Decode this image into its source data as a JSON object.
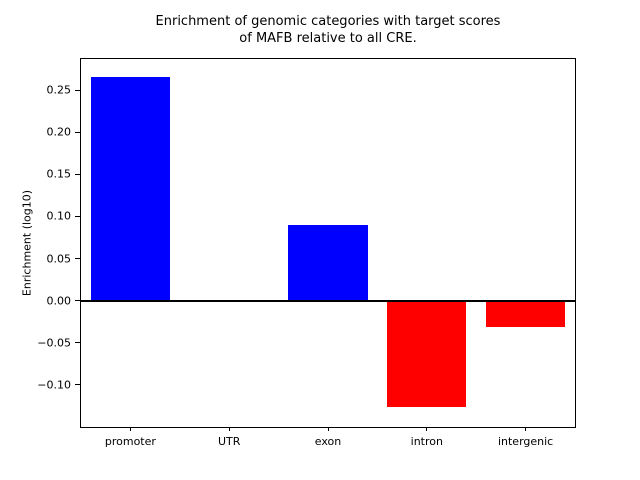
{
  "chart_data": {
    "type": "bar",
    "title": "Enrichment of genomic categories with target scores of MAFB relative to all CRE.",
    "title_lines": [
      "Enrichment of genomic categories with target scores",
      "of MAFB relative to all CRE."
    ],
    "xlabel": "",
    "ylabel": "Enrichment (log10)",
    "categories": [
      "promoter",
      "UTR",
      "exon",
      "intron",
      "intergenic"
    ],
    "values": [
      0.266,
      0.0,
      0.09,
      -0.126,
      -0.031
    ],
    "ylim": [
      -0.15,
      0.287
    ],
    "yticks": [
      -0.1,
      -0.05,
      0.0,
      0.05,
      0.1,
      0.15,
      0.2,
      0.25
    ],
    "bar_width_fraction": 0.8,
    "positive_color": "#0000ff",
    "negative_color": "#ff0000",
    "zero_line_color": "#000000",
    "grid": false,
    "legend": null
  }
}
